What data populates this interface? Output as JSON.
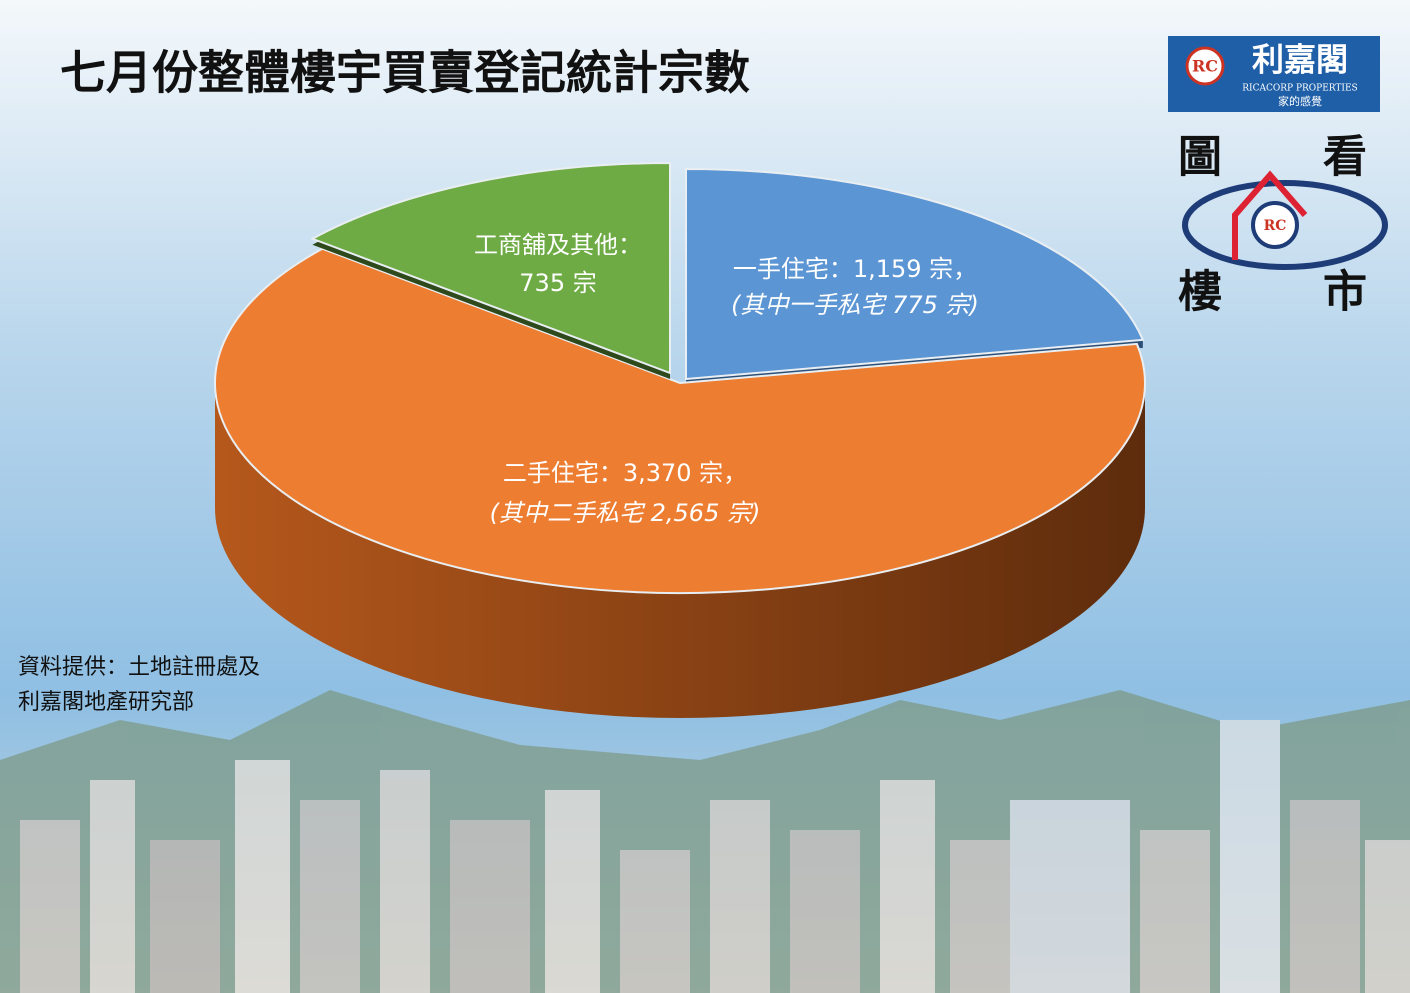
{
  "chart_data": {
    "type": "pie",
    "title": "七月份整體樓宇買賣登記統計宗數",
    "categories": [
      "一手住宅：",
      "二手住宅：",
      "工商舖及其他："
    ],
    "values": [
      1159,
      3370,
      735
    ],
    "value_labels": [
      "1,159 宗，",
      "3,370 宗，",
      "735 宗"
    ],
    "annotations": [
      "(其中一手私宅 775 宗)",
      "(其中二手私宅 2,565 宗)"
    ],
    "colors": [
      "#5b95d3",
      "#ed7d31",
      "#6eab45"
    ],
    "source": [
      "資料提供：土地註冊處及",
      "利嘉閣地產研究部"
    ]
  },
  "logo": {
    "name": "利嘉閣",
    "english": "RICACORP PROPERTIES",
    "slogan": "家的感覺",
    "emblem": "RC",
    "tagline": [
      "圖",
      "看",
      "樓",
      "市"
    ]
  }
}
